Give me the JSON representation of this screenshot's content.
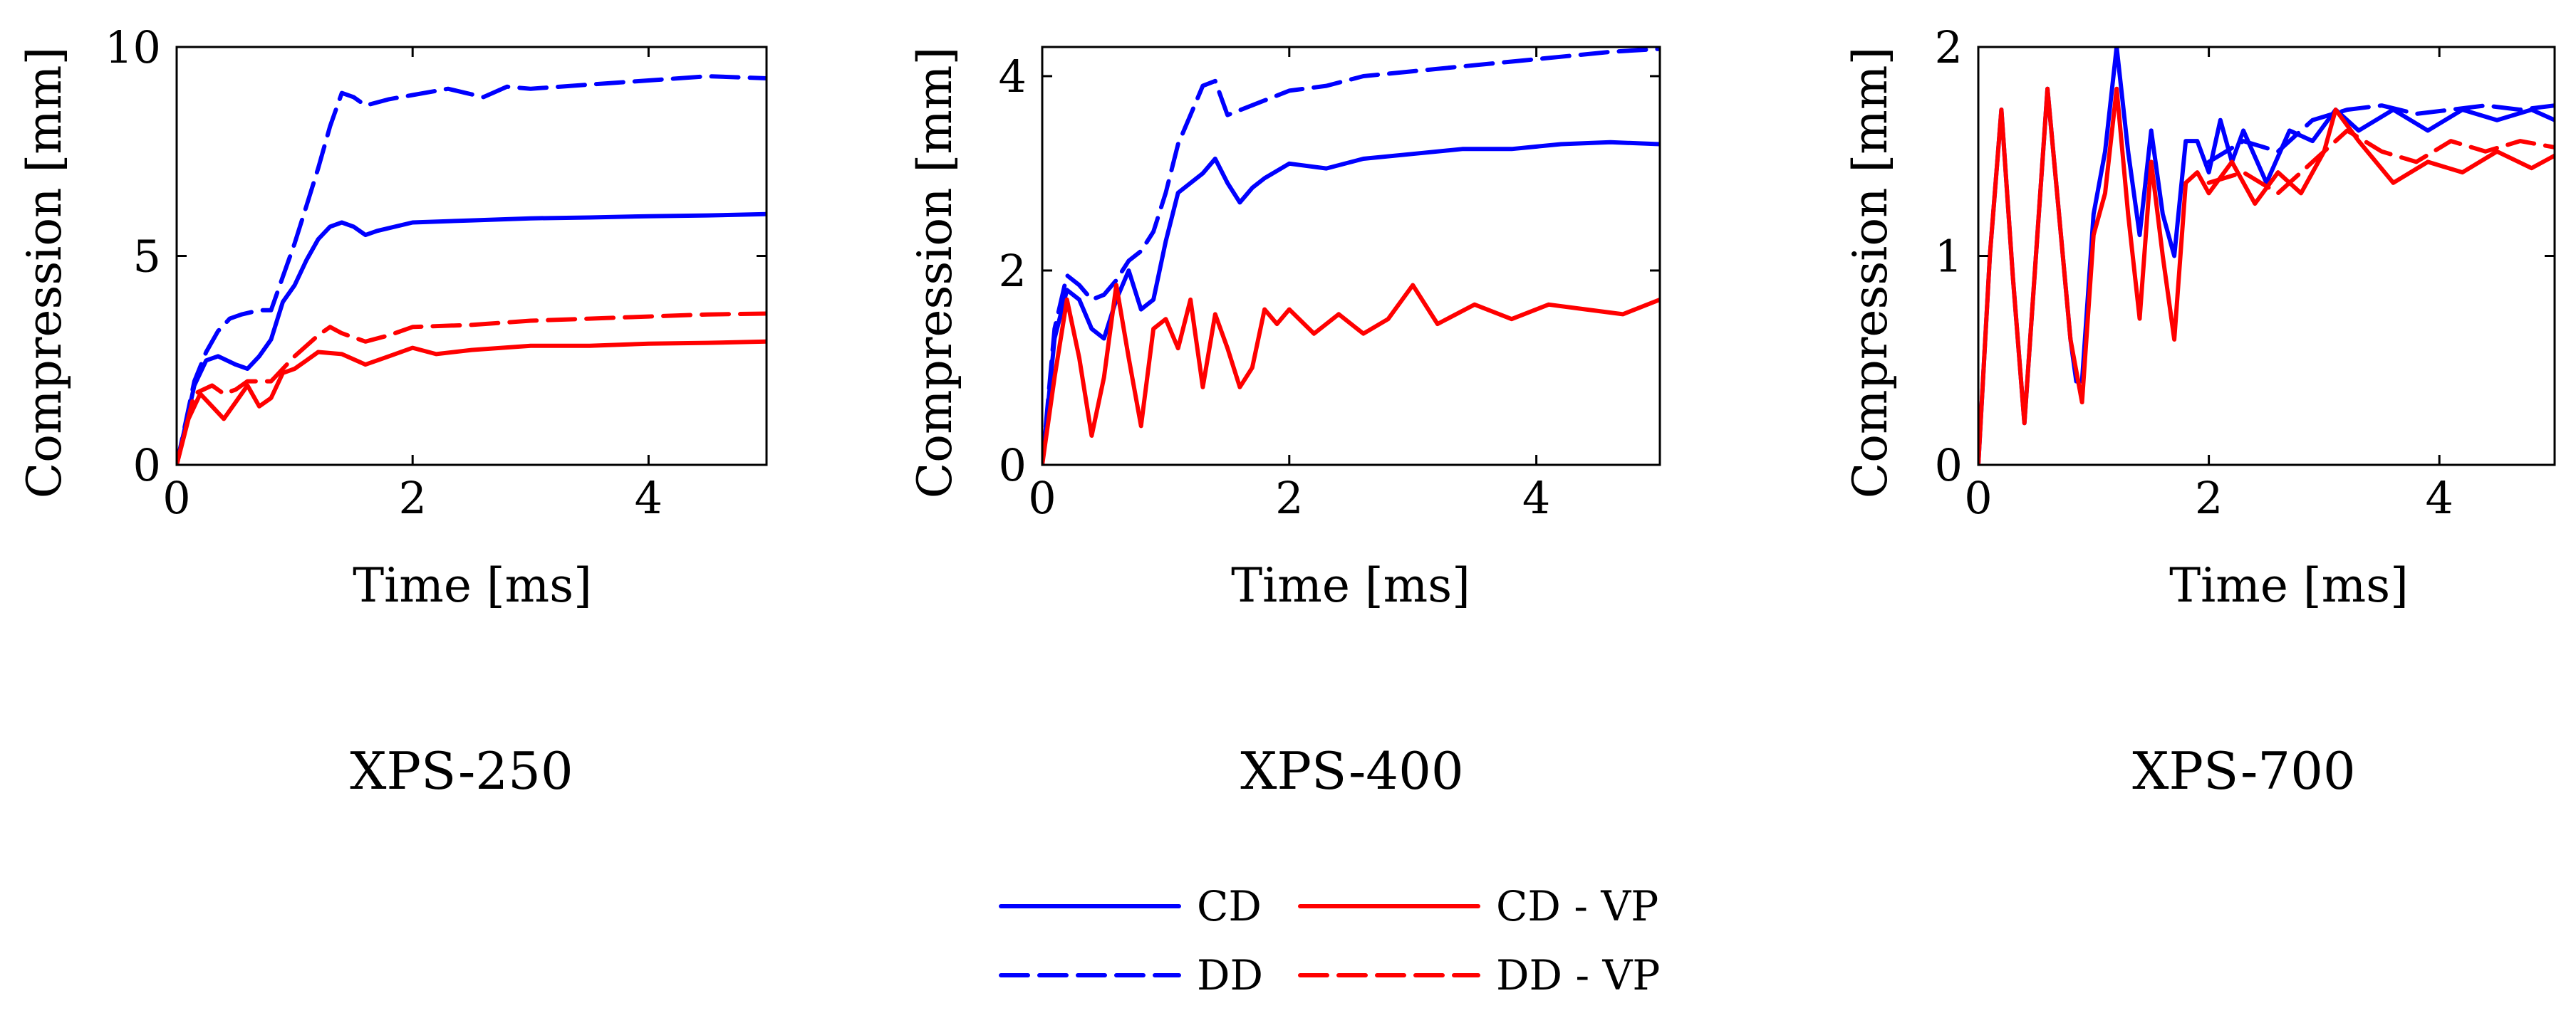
{
  "chart_data": [
    {
      "type": "line",
      "title": "XPS-250",
      "xlabel": "Time [ms]",
      "ylabel": "Compression [mm]",
      "xlim": [
        0,
        5
      ],
      "ylim": [
        0,
        10
      ],
      "xticks": [
        0,
        2,
        4
      ],
      "yticks": [
        0,
        5,
        10
      ],
      "xtick_labels": [
        "0",
        "2",
        "4"
      ],
      "ytick_labels": [
        "0",
        "5",
        "10"
      ],
      "series": [
        {
          "name": "CD",
          "color": "#0000ff",
          "dash": "solid",
          "x": [
            0,
            0.15,
            0.25,
            0.35,
            0.5,
            0.6,
            0.7,
            0.8,
            0.9,
            1.0,
            1.1,
            1.2,
            1.3,
            1.4,
            1.5,
            1.6,
            1.7,
            2.0,
            2.5,
            3.0,
            3.5,
            4.0,
            4.5,
            5.0
          ],
          "y": [
            0,
            1.9,
            2.5,
            2.6,
            2.4,
            2.3,
            2.6,
            3.0,
            3.9,
            4.3,
            4.9,
            5.4,
            5.7,
            5.8,
            5.7,
            5.5,
            5.6,
            5.8,
            5.85,
            5.9,
            5.92,
            5.95,
            5.97,
            6.0
          ]
        },
        {
          "name": "DD",
          "color": "#0000ff",
          "dash": "dashed",
          "x": [
            0,
            0.15,
            0.25,
            0.35,
            0.45,
            0.55,
            0.7,
            0.8,
            0.9,
            1.0,
            1.1,
            1.2,
            1.3,
            1.4,
            1.5,
            1.6,
            1.8,
            2.0,
            2.3,
            2.6,
            2.8,
            3.0,
            3.5,
            4.0,
            4.5,
            5.0
          ],
          "y": [
            0,
            2.0,
            2.7,
            3.2,
            3.5,
            3.6,
            3.7,
            3.7,
            4.5,
            5.3,
            6.2,
            7.1,
            8.1,
            8.9,
            8.8,
            8.6,
            8.75,
            8.85,
            9.0,
            8.8,
            9.05,
            9.0,
            9.1,
            9.2,
            9.3,
            9.25
          ]
        },
        {
          "name": "CD - VP",
          "color": "#ff0000",
          "dash": "solid",
          "x": [
            0,
            0.1,
            0.2,
            0.3,
            0.4,
            0.5,
            0.6,
            0.7,
            0.8,
            0.9,
            1.0,
            1.1,
            1.2,
            1.4,
            1.6,
            1.8,
            2.0,
            2.2,
            2.5,
            3.0,
            3.5,
            4.0,
            4.5,
            5.0
          ],
          "y": [
            0,
            1.1,
            1.7,
            1.4,
            1.1,
            1.5,
            1.9,
            1.4,
            1.6,
            2.2,
            2.3,
            2.5,
            2.7,
            2.65,
            2.4,
            2.6,
            2.8,
            2.65,
            2.75,
            2.85,
            2.85,
            2.9,
            2.92,
            2.95
          ]
        },
        {
          "name": "DD - VP",
          "color": "#ff0000",
          "dash": "dashed",
          "x": [
            0,
            0.15,
            0.3,
            0.4,
            0.5,
            0.6,
            0.8,
            1.0,
            1.2,
            1.3,
            1.4,
            1.6,
            1.8,
            2.0,
            2.5,
            3.0,
            3.5,
            4.0,
            4.5,
            5.0
          ],
          "y": [
            0,
            1.7,
            1.9,
            1.7,
            1.8,
            2.0,
            2.0,
            2.6,
            3.1,
            3.3,
            3.15,
            2.95,
            3.1,
            3.3,
            3.35,
            3.45,
            3.5,
            3.55,
            3.6,
            3.62
          ]
        }
      ]
    },
    {
      "type": "line",
      "title": "XPS-400",
      "xlabel": "Time [ms]",
      "ylabel": "Compression [mm]",
      "xlim": [
        0,
        5
      ],
      "ylim": [
        0,
        4.3
      ],
      "xticks": [
        0,
        2,
        4
      ],
      "yticks": [
        0,
        2,
        4
      ],
      "xtick_labels": [
        "0",
        "2",
        "4"
      ],
      "ytick_labels": [
        "0",
        "2",
        "4"
      ],
      "series": [
        {
          "name": "CD",
          "color": "#0000ff",
          "dash": "solid",
          "x": [
            0,
            0.1,
            0.2,
            0.3,
            0.4,
            0.5,
            0.6,
            0.7,
            0.8,
            0.9,
            1.0,
            1.1,
            1.2,
            1.3,
            1.4,
            1.5,
            1.6,
            1.7,
            1.8,
            2.0,
            2.3,
            2.6,
            3.0,
            3.4,
            3.8,
            4.2,
            4.6,
            5.0
          ],
          "y": [
            0,
            1.3,
            1.8,
            1.7,
            1.4,
            1.3,
            1.7,
            2.0,
            1.6,
            1.7,
            2.3,
            2.8,
            2.9,
            3.0,
            3.15,
            2.9,
            2.7,
            2.85,
            2.95,
            3.1,
            3.05,
            3.15,
            3.2,
            3.25,
            3.25,
            3.3,
            3.32,
            3.3
          ]
        },
        {
          "name": "DD",
          "color": "#0000ff",
          "dash": "dashed",
          "x": [
            0,
            0.1,
            0.2,
            0.3,
            0.4,
            0.5,
            0.6,
            0.7,
            0.8,
            0.9,
            1.0,
            1.1,
            1.2,
            1.3,
            1.4,
            1.5,
            1.6,
            1.8,
            2.0,
            2.3,
            2.6,
            3.0,
            3.4,
            3.8,
            4.2,
            4.6,
            5.0
          ],
          "y": [
            0,
            1.4,
            1.95,
            1.85,
            1.7,
            1.75,
            1.9,
            2.1,
            2.2,
            2.4,
            2.8,
            3.3,
            3.6,
            3.9,
            3.95,
            3.6,
            3.65,
            3.75,
            3.85,
            3.9,
            4.0,
            4.05,
            4.1,
            4.15,
            4.2,
            4.25,
            4.28
          ]
        },
        {
          "name": "CD - VP",
          "color": "#ff0000",
          "dash": "solid",
          "x": [
            0,
            0.1,
            0.2,
            0.3,
            0.4,
            0.5,
            0.6,
            0.7,
            0.8,
            0.9,
            1.0,
            1.1,
            1.2,
            1.3,
            1.4,
            1.5,
            1.6,
            1.7,
            1.8,
            1.9,
            2.0,
            2.2,
            2.4,
            2.6,
            2.8,
            3.0,
            3.2,
            3.5,
            3.8,
            4.1,
            4.4,
            4.7,
            5.0
          ],
          "y": [
            0,
            0.9,
            1.7,
            1.1,
            0.3,
            0.9,
            1.85,
            1.1,
            0.4,
            1.4,
            1.5,
            1.2,
            1.7,
            0.8,
            1.55,
            1.2,
            0.8,
            1.0,
            1.6,
            1.45,
            1.6,
            1.35,
            1.55,
            1.35,
            1.5,
            1.85,
            1.45,
            1.65,
            1.5,
            1.65,
            1.6,
            1.55,
            1.7
          ]
        }
      ]
    },
    {
      "type": "line",
      "title": "XPS-700",
      "xlabel": "Time [ms]",
      "ylabel": "Compression [mm]",
      "xlim": [
        0,
        5
      ],
      "ylim": [
        0,
        2
      ],
      "xticks": [
        0,
        2,
        4
      ],
      "yticks": [
        0,
        1,
        2
      ],
      "xtick_labels": [
        "0",
        "2",
        "4"
      ],
      "ytick_labels": [
        "0",
        "1",
        "2"
      ],
      "series": [
        {
          "name": "CD",
          "color": "#0000ff",
          "dash": "solid",
          "x": [
            0,
            0.1,
            0.2,
            0.3,
            0.4,
            0.5,
            0.6,
            0.7,
            0.8,
            0.85,
            0.9,
            1.0,
            1.1,
            1.2,
            1.3,
            1.4,
            1.5,
            1.6,
            1.7,
            1.8,
            1.9,
            2.0,
            2.1,
            2.2,
            2.3,
            2.5,
            2.7,
            2.9,
            3.1,
            3.3,
            3.6,
            3.9,
            4.2,
            4.5,
            4.8,
            5.0
          ],
          "y": [
            0,
            1.0,
            1.7,
            0.9,
            0.2,
            1.0,
            1.8,
            1.2,
            0.6,
            0.4,
            0.4,
            1.2,
            1.5,
            2.0,
            1.5,
            1.1,
            1.6,
            1.2,
            1.0,
            1.55,
            1.55,
            1.4,
            1.65,
            1.45,
            1.6,
            1.35,
            1.6,
            1.55,
            1.7,
            1.6,
            1.7,
            1.6,
            1.7,
            1.65,
            1.7,
            1.65
          ]
        },
        {
          "name": "DD",
          "color": "#0000ff",
          "dash": "dashed",
          "x": [
            2.0,
            2.3,
            2.6,
            2.9,
            3.2,
            3.5,
            3.8,
            4.1,
            4.4,
            4.7,
            5.0
          ],
          "y": [
            1.45,
            1.55,
            1.5,
            1.65,
            1.7,
            1.72,
            1.68,
            1.7,
            1.72,
            1.7,
            1.72
          ]
        },
        {
          "name": "CD - VP",
          "color": "#ff0000",
          "dash": "solid",
          "x": [
            0,
            0.1,
            0.2,
            0.3,
            0.4,
            0.5,
            0.6,
            0.7,
            0.8,
            0.9,
            1.0,
            1.1,
            1.2,
            1.3,
            1.4,
            1.5,
            1.6,
            1.7,
            1.8,
            1.9,
            2.0,
            2.2,
            2.4,
            2.6,
            2.8,
            3.0,
            3.1,
            3.3,
            3.6,
            3.9,
            4.2,
            4.5,
            4.8,
            5.0
          ],
          "y": [
            0,
            1.0,
            1.7,
            0.9,
            0.2,
            1.0,
            1.8,
            1.2,
            0.6,
            0.3,
            1.1,
            1.3,
            1.8,
            1.2,
            0.7,
            1.45,
            1.0,
            0.6,
            1.35,
            1.4,
            1.3,
            1.45,
            1.25,
            1.4,
            1.3,
            1.5,
            1.7,
            1.55,
            1.35,
            1.45,
            1.4,
            1.5,
            1.42,
            1.48
          ]
        },
        {
          "name": "DD - VP",
          "color": "#ff0000",
          "dash": "dashed",
          "x": [
            2.0,
            2.3,
            2.6,
            2.9,
            3.2,
            3.5,
            3.8,
            4.1,
            4.4,
            4.7,
            5.0
          ],
          "y": [
            1.35,
            1.4,
            1.3,
            1.45,
            1.6,
            1.5,
            1.45,
            1.55,
            1.5,
            1.55,
            1.52
          ]
        }
      ]
    }
  ],
  "legend": {
    "placement": "bottom-center",
    "items": [
      {
        "label": "CD",
        "color": "#0000ff",
        "dash": "solid"
      },
      {
        "label": "CD - VP",
        "color": "#ff0000",
        "dash": "solid"
      },
      {
        "label": "DD",
        "color": "#0000ff",
        "dash": "dashed"
      },
      {
        "label": "DD - VP",
        "color": "#ff0000",
        "dash": "dashed"
      }
    ]
  }
}
